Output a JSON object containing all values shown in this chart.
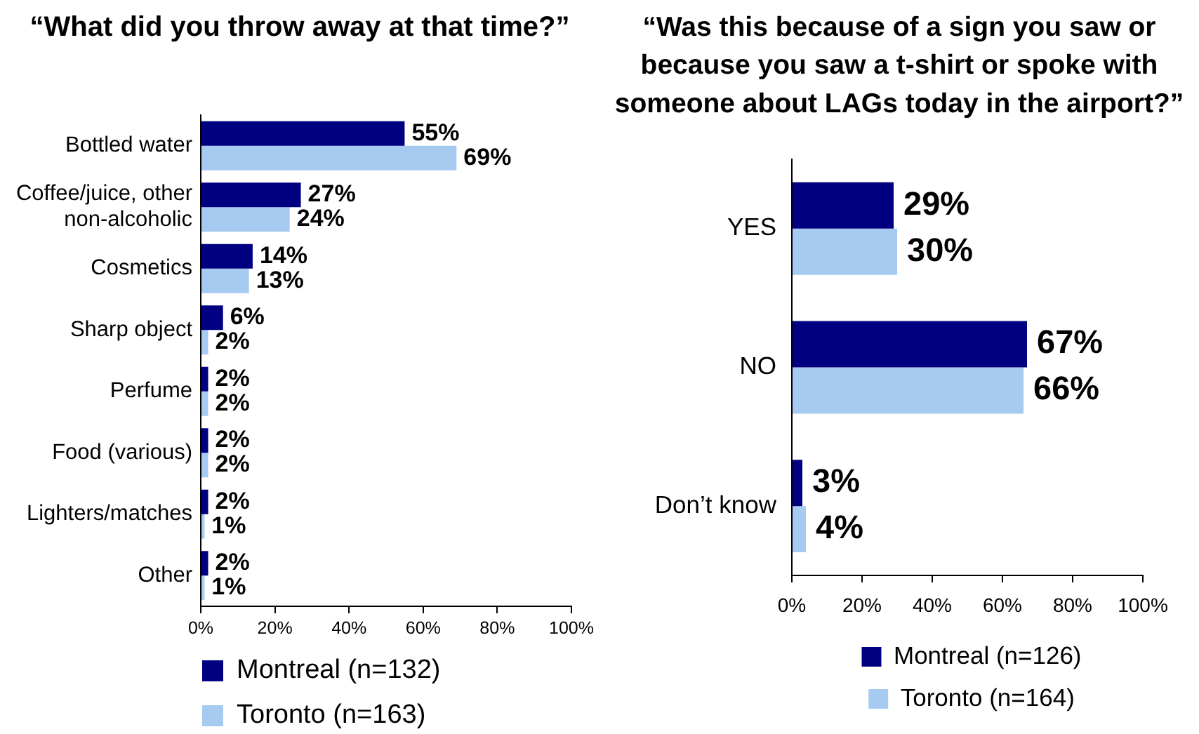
{
  "chart_data": [
    {
      "type": "bar",
      "orientation": "horizontal",
      "title": "“What did you throw away at that time?”",
      "categories": [
        "Bottled water",
        "Coffee/juice, other non-alcoholic",
        "Cosmetics",
        "Sharp object",
        "Perfume",
        "Food (various)",
        "Lighters/matches",
        "Other"
      ],
      "series": [
        {
          "name": "Montreal (n=132)",
          "color": "#000080",
          "values": [
            55,
            27,
            14,
            6,
            2,
            2,
            2,
            2
          ],
          "value_labels": [
            "55%",
            "27%",
            "14%",
            "6%",
            "2%",
            "2%",
            "2%",
            "2%"
          ]
        },
        {
          "name": "Toronto (n=163)",
          "color": "#a6caf0",
          "values": [
            69,
            24,
            13,
            2,
            2,
            2,
            1,
            1
          ],
          "value_labels": [
            "69%",
            "24%",
            "13%",
            "2%",
            "2%",
            "2%",
            "1%",
            "1%"
          ]
        }
      ],
      "xlim": [
        0,
        100
      ],
      "xticks": [
        {
          "value": 0,
          "label": "0%"
        },
        {
          "value": 20,
          "label": "20%"
        },
        {
          "value": 40,
          "label": "40%"
        },
        {
          "value": 60,
          "label": "60%"
        },
        {
          "value": 80,
          "label": "80%"
        },
        {
          "value": 100,
          "label": "100%"
        }
      ],
      "grid": false,
      "legend": "bottom"
    },
    {
      "type": "bar",
      "orientation": "horizontal",
      "title": "“Was this because of a sign you saw or because you saw a t-shirt or spoke with someone about LAGs today in the airport?”",
      "categories": [
        "YES",
        "NO",
        "Don’t know"
      ],
      "series": [
        {
          "name": "Montreal (n=126)",
          "color": "#000080",
          "values": [
            29,
            67,
            3
          ],
          "value_labels": [
            "29%",
            "67%",
            "3%"
          ]
        },
        {
          "name": "Toronto (n=164)",
          "color": "#a6caf0",
          "values": [
            30,
            66,
            4
          ],
          "value_labels": [
            "30%",
            "66%",
            "4%"
          ]
        }
      ],
      "xlim": [
        0,
        100
      ],
      "xticks": [
        {
          "value": 0,
          "label": "0%"
        },
        {
          "value": 20,
          "label": "20%"
        },
        {
          "value": 40,
          "label": "40%"
        },
        {
          "value": 60,
          "label": "60%"
        },
        {
          "value": 80,
          "label": "80%"
        },
        {
          "value": 100,
          "label": "100%"
        }
      ],
      "grid": false,
      "legend": "bottom"
    }
  ]
}
